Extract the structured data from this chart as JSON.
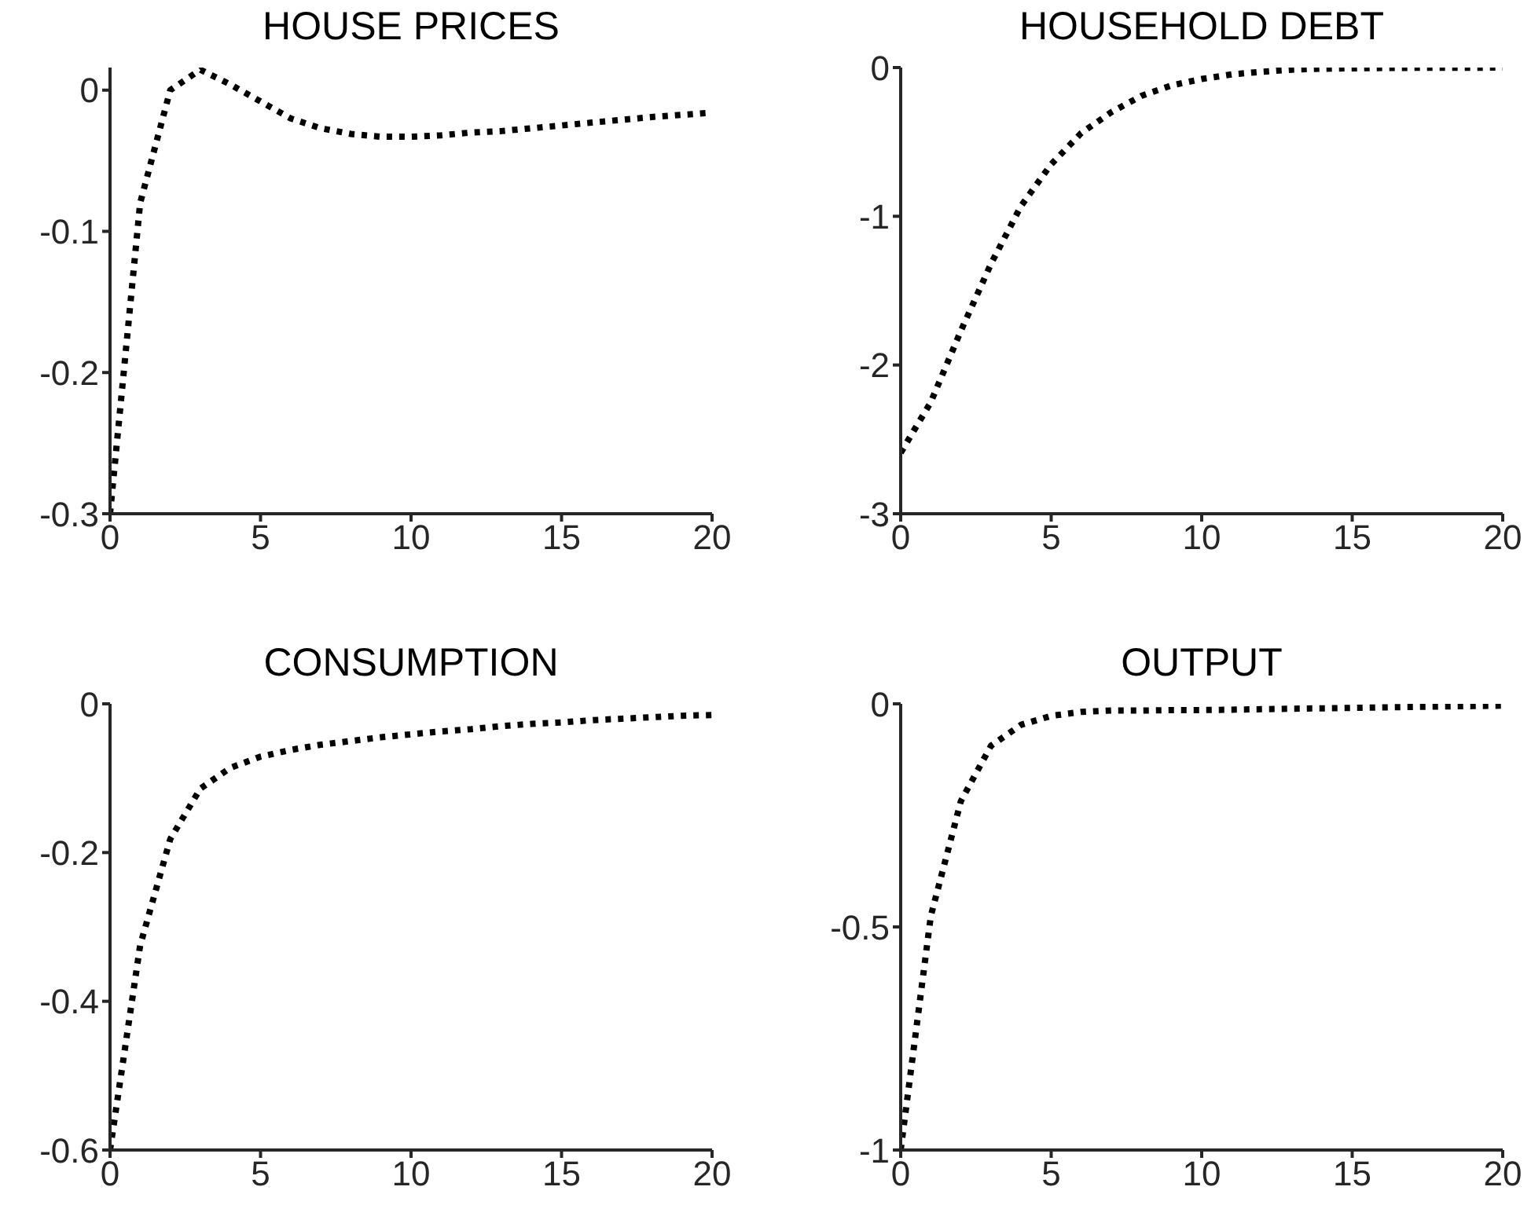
{
  "chart_data": [
    {
      "type": "line",
      "title": "HOUSE PRICES",
      "x": [
        0,
        1,
        2,
        3,
        4,
        5,
        6,
        7,
        8,
        9,
        10,
        11,
        12,
        13,
        14,
        15,
        16,
        17,
        18,
        19,
        20
      ],
      "series": [
        {
          "color": "#000000",
          "values": [
            -0.3,
            -0.08,
            0.0,
            0.0145,
            0.004,
            -0.008,
            -0.02,
            -0.027,
            -0.031,
            -0.033,
            -0.033,
            -0.032,
            -0.03,
            -0.029,
            -0.027,
            -0.025,
            -0.023,
            -0.021,
            -0.019,
            -0.0175,
            -0.016
          ]
        }
      ],
      "xlim": [
        0,
        20
      ],
      "xticks": [
        0,
        5,
        10,
        15,
        20
      ],
      "ylim": [
        -0.3,
        0.016
      ],
      "yticks": [
        -0.3,
        -0.2,
        -0.1,
        0
      ],
      "line_style": "dotted"
    },
    {
      "type": "line",
      "title": "HOUSEHOLD DEBT",
      "x": [
        0,
        1,
        2,
        3,
        4,
        5,
        6,
        7,
        8,
        9,
        10,
        11,
        12,
        13,
        14,
        15,
        16,
        17,
        18,
        19,
        20
      ],
      "series": [
        {
          "color": "#000000",
          "values": [
            -2.59,
            -2.25,
            -1.77,
            -1.32,
            -0.93,
            -0.65,
            -0.44,
            -0.3,
            -0.19,
            -0.12,
            -0.077,
            -0.046,
            -0.028,
            -0.014,
            -0.008,
            -0.005,
            -0.003,
            -0.002,
            -0.001,
            -0.001,
            0
          ]
        }
      ],
      "xlim": [
        0,
        20
      ],
      "xticks": [
        0,
        5,
        10,
        15,
        20
      ],
      "ylim": [
        -3,
        0
      ],
      "yticks": [
        -3,
        -2,
        -1,
        0
      ],
      "line_style": "dotted"
    },
    {
      "type": "line",
      "title": "CONSUMPTION",
      "x": [
        0,
        1,
        2,
        3,
        4,
        5,
        6,
        7,
        8,
        9,
        10,
        11,
        12,
        13,
        14,
        15,
        16,
        17,
        18,
        19,
        20
      ],
      "series": [
        {
          "color": "#000000",
          "values": [
            -0.6,
            -0.325,
            -0.182,
            -0.114,
            -0.086,
            -0.071,
            -0.062,
            -0.055,
            -0.05,
            -0.045,
            -0.041,
            -0.037,
            -0.034,
            -0.03,
            -0.027,
            -0.025,
            -0.022,
            -0.02,
            -0.018,
            -0.016,
            -0.015
          ]
        }
      ],
      "xlim": [
        0,
        20
      ],
      "xticks": [
        0,
        5,
        10,
        15,
        20
      ],
      "ylim": [
        -0.6,
        0
      ],
      "yticks": [
        -0.6,
        -0.4,
        -0.2,
        0
      ],
      "line_style": "dotted"
    },
    {
      "type": "line",
      "title": "OUTPUT",
      "x": [
        0,
        1,
        2,
        3,
        4,
        5,
        6,
        7,
        8,
        9,
        10,
        11,
        12,
        13,
        14,
        15,
        16,
        17,
        18,
        19,
        20
      ],
      "series": [
        {
          "color": "#000000",
          "values": [
            -1,
            -0.476,
            -0.218,
            -0.094,
            -0.047,
            -0.027,
            -0.018,
            -0.015,
            -0.015,
            -0.014,
            -0.014,
            -0.013,
            -0.012,
            -0.011,
            -0.01,
            -0.009,
            -0.008,
            -0.007,
            -0.006,
            -0.005,
            -0.004
          ]
        }
      ],
      "xlim": [
        0,
        20
      ],
      "xticks": [
        0,
        5,
        10,
        15,
        20
      ],
      "ylim": [
        -1,
        0
      ],
      "yticks": [
        -1,
        -0.5,
        0
      ],
      "line_style": "dotted"
    }
  ]
}
